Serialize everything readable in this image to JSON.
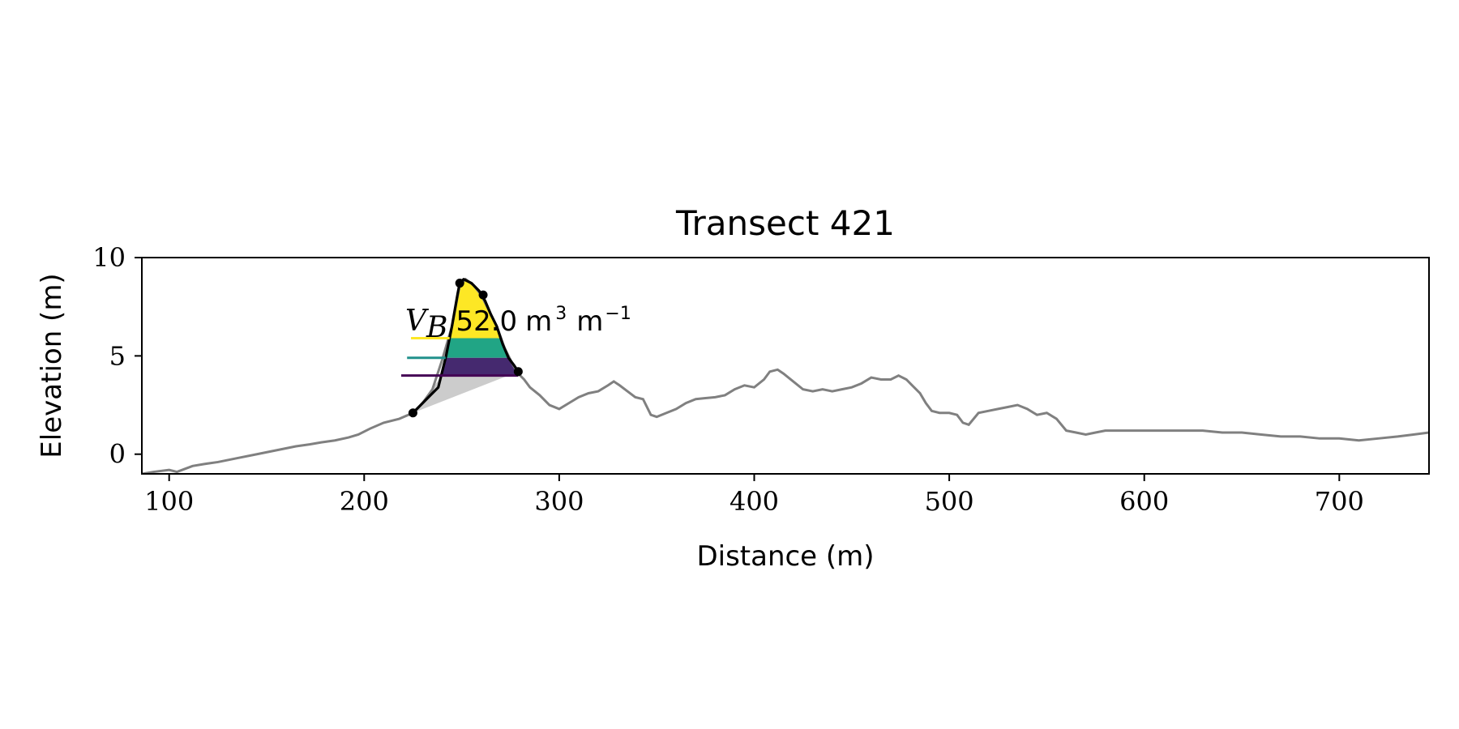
{
  "chart_data": {
    "type": "line",
    "title": "Transect 421",
    "xlabel": "Distance (m)",
    "ylabel": "Elevation (m)",
    "xlim": [
      86,
      746
    ],
    "ylim": [
      -1,
      10
    ],
    "xticks": [
      100,
      200,
      300,
      400,
      500,
      600,
      700
    ],
    "yticks": [
      0,
      5,
      10
    ],
    "grid": false,
    "annotation": {
      "symbol": "V",
      "subscript": "B",
      "value": "52.0",
      "unit": "m",
      "unit_exp": "3",
      "per": "m",
      "per_exp": "−1"
    },
    "profile": {
      "color": "#808080",
      "x": [
        86,
        92,
        100,
        104,
        108,
        112,
        118,
        125,
        135,
        145,
        155,
        165,
        172,
        178,
        185,
        192,
        197,
        203,
        210,
        218,
        225,
        230,
        235,
        240,
        245,
        249,
        252,
        256,
        260,
        264,
        268,
        272,
        276,
        279,
        282,
        285,
        290,
        295,
        300,
        305,
        310,
        315,
        320,
        325,
        328,
        331,
        335,
        339,
        343,
        347,
        350,
        355,
        360,
        365,
        370,
        375,
        380,
        385,
        390,
        395,
        400,
        405,
        408,
        412,
        415,
        420,
        425,
        430,
        435,
        440,
        445,
        450,
        455,
        460,
        465,
        470,
        474,
        478,
        481,
        485,
        488,
        491,
        495,
        500,
        504,
        507,
        510,
        515,
        520,
        525,
        530,
        535,
        540,
        545,
        550,
        555,
        560,
        565,
        570,
        575,
        580,
        590,
        600,
        610,
        620,
        630,
        640,
        650,
        660,
        670,
        680,
        690,
        700,
        710,
        720,
        730,
        738,
        746
      ],
      "y": [
        -1.0,
        -0.9,
        -0.8,
        -0.9,
        -0.75,
        -0.6,
        -0.5,
        -0.4,
        -0.2,
        0.0,
        0.2,
        0.4,
        0.5,
        0.6,
        0.7,
        0.85,
        1.0,
        1.3,
        1.6,
        1.8,
        2.1,
        2.6,
        3.3,
        4.8,
        6.5,
        8.6,
        8.9,
        8.6,
        8.1,
        7.3,
        6.5,
        5.4,
        4.6,
        4.1,
        3.8,
        3.4,
        3.0,
        2.5,
        2.3,
        2.6,
        2.9,
        3.1,
        3.2,
        3.5,
        3.7,
        3.5,
        3.2,
        2.9,
        2.8,
        2.0,
        1.9,
        2.1,
        2.3,
        2.6,
        2.8,
        2.85,
        2.9,
        3.0,
        3.3,
        3.5,
        3.4,
        3.8,
        4.2,
        4.3,
        4.1,
        3.7,
        3.3,
        3.2,
        3.3,
        3.2,
        3.3,
        3.4,
        3.6,
        3.9,
        3.8,
        3.8,
        4.0,
        3.8,
        3.5,
        3.1,
        2.6,
        2.2,
        2.1,
        2.1,
        2.0,
        1.6,
        1.5,
        2.1,
        2.2,
        2.3,
        2.4,
        2.5,
        2.3,
        2.0,
        2.1,
        1.8,
        1.2,
        1.1,
        1.0,
        1.1,
        1.2,
        1.2,
        1.2,
        1.2,
        1.2,
        1.2,
        1.1,
        1.1,
        1.0,
        0.9,
        0.9,
        0.8,
        0.8,
        0.7,
        0.8,
        0.9,
        1.0,
        1.1
      ]
    },
    "dune_outline": {
      "color": "#000000",
      "x": [
        225,
        230,
        234,
        238,
        242,
        245,
        248,
        249,
        251,
        255,
        259,
        262,
        265,
        268,
        271,
        274,
        277,
        279
      ],
      "y": [
        2.1,
        2.6,
        3.0,
        3.4,
        5.0,
        6.5,
        8.2,
        8.7,
        8.9,
        8.7,
        8.3,
        7.8,
        7.1,
        6.5,
        5.6,
        4.9,
        4.5,
        4.2
      ]
    },
    "points": [
      {
        "x": 225,
        "y": 2.1
      },
      {
        "x": 249,
        "y": 8.7
      },
      {
        "x": 261,
        "y": 8.1
      },
      {
        "x": 279,
        "y": 4.2
      }
    ],
    "base_wedge": {
      "color": "#cccccc",
      "points": [
        [
          225,
          2.1
        ],
        [
          279,
          4.2
        ],
        [
          240,
          4.0
        ]
      ]
    },
    "bands": [
      {
        "y0": 5.9,
        "y1": 8.9,
        "color": "#fde725",
        "line_x0": 224,
        "line_x1": 240
      },
      {
        "y0": 4.9,
        "y1": 5.9,
        "color": "#21a585",
        "line_x0": 222,
        "line_x1": 240
      },
      {
        "y0": 4.0,
        "y1": 4.9,
        "color": "#45296f",
        "line_x0": 219,
        "line_x1": 240
      }
    ],
    "band_line_colors": [
      "#fde725",
      "#21918c",
      "#440154"
    ]
  }
}
